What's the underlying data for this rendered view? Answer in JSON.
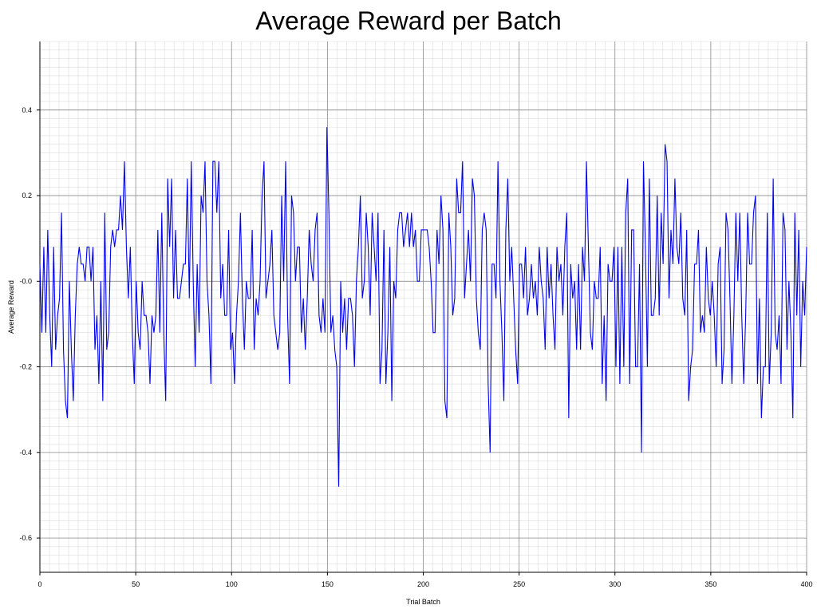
{
  "chart_data": {
    "type": "line",
    "title": "Average Reward per Batch",
    "xlabel": "Trial Batch",
    "ylabel": "Average Reward",
    "xlim": [
      0,
      400
    ],
    "ylim": [
      -0.68,
      0.56
    ],
    "x_ticks": [
      0,
      50,
      100,
      150,
      200,
      250,
      300,
      350,
      400
    ],
    "x_tick_labels": [
      "0",
      "50",
      "100",
      "150",
      "200",
      "250",
      "300",
      "350",
      "400"
    ],
    "y_ticks": [
      0.4,
      0.2,
      0.0,
      -0.2,
      -0.4,
      -0.6
    ],
    "y_tick_labels": [
      "0.4",
      "0.2",
      "-0.0",
      "-0.2",
      "-0.4",
      "-0.6"
    ],
    "grid": true,
    "minor_grid": true,
    "line_color": "#0000ee",
    "series": [
      {
        "values": [
          0.04,
          -0.12,
          0.08,
          -0.12,
          0.12,
          -0.08,
          -0.2,
          0.08,
          -0.16,
          -0.08,
          -0.04,
          0.16,
          -0.16,
          -0.28,
          -0.32,
          0.0,
          -0.16,
          -0.28,
          -0.08,
          0.04,
          0.08,
          0.04,
          0.04,
          0.0,
          0.08,
          0.08,
          0.0,
          0.08,
          -0.16,
          -0.08,
          -0.24,
          0.0,
          -0.28,
          0.16,
          -0.16,
          -0.12,
          0.08,
          0.12,
          0.08,
          0.12,
          0.12,
          0.2,
          0.12,
          0.28,
          0.08,
          -0.04,
          0.08,
          -0.12,
          -0.24,
          0.0,
          -0.12,
          -0.16,
          0.0,
          -0.08,
          -0.08,
          -0.12,
          -0.24,
          -0.08,
          -0.12,
          -0.08,
          0.12,
          -0.12,
          0.16,
          -0.12,
          -0.28,
          0.24,
          0.08,
          0.24,
          -0.04,
          0.12,
          -0.04,
          -0.04,
          0.0,
          0.04,
          0.04,
          0.24,
          -0.04,
          0.28,
          0.0,
          -0.2,
          0.04,
          -0.12,
          0.2,
          0.16,
          0.28,
          0.0,
          -0.08,
          -0.24,
          0.28,
          0.28,
          0.16,
          0.28,
          -0.04,
          0.04,
          -0.08,
          -0.08,
          0.12,
          -0.16,
          -0.12,
          -0.24,
          -0.08,
          0.0,
          0.16,
          -0.04,
          -0.16,
          0.0,
          -0.04,
          -0.04,
          0.12,
          -0.16,
          -0.04,
          -0.08,
          0.0,
          0.2,
          0.28,
          -0.04,
          0.0,
          0.04,
          0.12,
          -0.08,
          -0.12,
          -0.16,
          -0.12,
          0.2,
          0.0,
          0.28,
          -0.08,
          -0.24,
          0.2,
          0.16,
          0.0,
          0.08,
          0.08,
          -0.12,
          -0.04,
          -0.16,
          -0.04,
          0.12,
          0.04,
          0.0,
          0.12,
          0.16,
          -0.08,
          -0.12,
          -0.04,
          -0.12,
          0.36,
          0.16,
          -0.12,
          -0.08,
          -0.16,
          -0.2,
          -0.48,
          0.0,
          -0.12,
          -0.04,
          -0.16,
          -0.04,
          -0.04,
          -0.08,
          -0.2,
          0.0,
          0.08,
          0.2,
          -0.04,
          0.0,
          0.16,
          0.08,
          -0.08,
          0.16,
          0.08,
          0.0,
          0.16,
          -0.24,
          -0.16,
          0.12,
          -0.24,
          -0.12,
          0.08,
          -0.28,
          0.0,
          -0.04,
          0.12,
          0.16,
          0.16,
          0.08,
          0.12,
          0.16,
          0.08,
          0.16,
          0.08,
          0.12,
          0.0,
          0.0,
          0.12,
          0.12,
          0.12,
          0.12,
          0.08,
          0.0,
          -0.12,
          -0.12,
          0.12,
          0.04,
          0.2,
          0.12,
          -0.28,
          -0.32,
          0.16,
          0.08,
          -0.08,
          -0.04,
          0.24,
          0.16,
          0.16,
          0.28,
          -0.04,
          0.04,
          0.12,
          0.0,
          0.24,
          0.2,
          -0.04,
          -0.12,
          -0.16,
          0.12,
          0.16,
          0.12,
          -0.24,
          -0.4,
          0.04,
          0.04,
          -0.04,
          0.28,
          0.0,
          -0.12,
          -0.28,
          0.12,
          0.24,
          0.0,
          0.08,
          -0.04,
          -0.16,
          -0.24,
          0.04,
          0.04,
          -0.04,
          0.08,
          -0.08,
          -0.04,
          0.04,
          -0.04,
          0.0,
          -0.08,
          0.08,
          0.0,
          -0.04,
          -0.16,
          0.08,
          -0.04,
          0.04,
          -0.08,
          -0.16,
          0.08,
          0.0,
          0.04,
          -0.08,
          0.08,
          0.16,
          -0.32,
          0.04,
          -0.04,
          0.0,
          -0.16,
          0.04,
          -0.16,
          0.08,
          0.0,
          0.28,
          0.08,
          -0.12,
          -0.16,
          0.0,
          -0.04,
          -0.04,
          0.08,
          -0.24,
          -0.08,
          -0.28,
          0.04,
          0.0,
          0.0,
          0.08,
          -0.2,
          0.08,
          -0.24,
          0.08,
          -0.2,
          0.16,
          0.24,
          -0.24,
          0.12,
          0.12,
          -0.2,
          -0.2,
          0.04,
          -0.4,
          0.28,
          0.08,
          -0.2,
          0.24,
          -0.08,
          -0.08,
          -0.04,
          0.2,
          -0.08,
          0.16,
          0.04,
          0.32,
          0.28,
          -0.04,
          0.12,
          0.04,
          0.24,
          0.08,
          0.04,
          0.16,
          -0.04,
          -0.08,
          0.12,
          -0.28,
          -0.2,
          -0.16,
          0.04,
          0.04,
          0.12,
          -0.12,
          -0.08,
          -0.12,
          0.08,
          -0.04,
          -0.08,
          0.0,
          -0.08,
          -0.2,
          0.04,
          0.08,
          -0.24,
          -0.16,
          0.16,
          0.12,
          -0.04,
          -0.24,
          -0.08,
          0.16,
          0.0,
          0.16,
          -0.08,
          -0.24,
          -0.08,
          0.16,
          0.04,
          0.04,
          0.16,
          0.2,
          -0.24,
          -0.04,
          -0.32,
          -0.2,
          -0.2,
          0.16,
          -0.24,
          -0.12,
          0.24,
          -0.12,
          -0.16,
          -0.08,
          -0.24,
          0.16,
          0.12,
          -0.16,
          0.0,
          -0.12,
          -0.32,
          0.16,
          -0.08,
          0.12,
          -0.2,
          0.0,
          -0.08,
          0.08
        ]
      }
    ]
  }
}
